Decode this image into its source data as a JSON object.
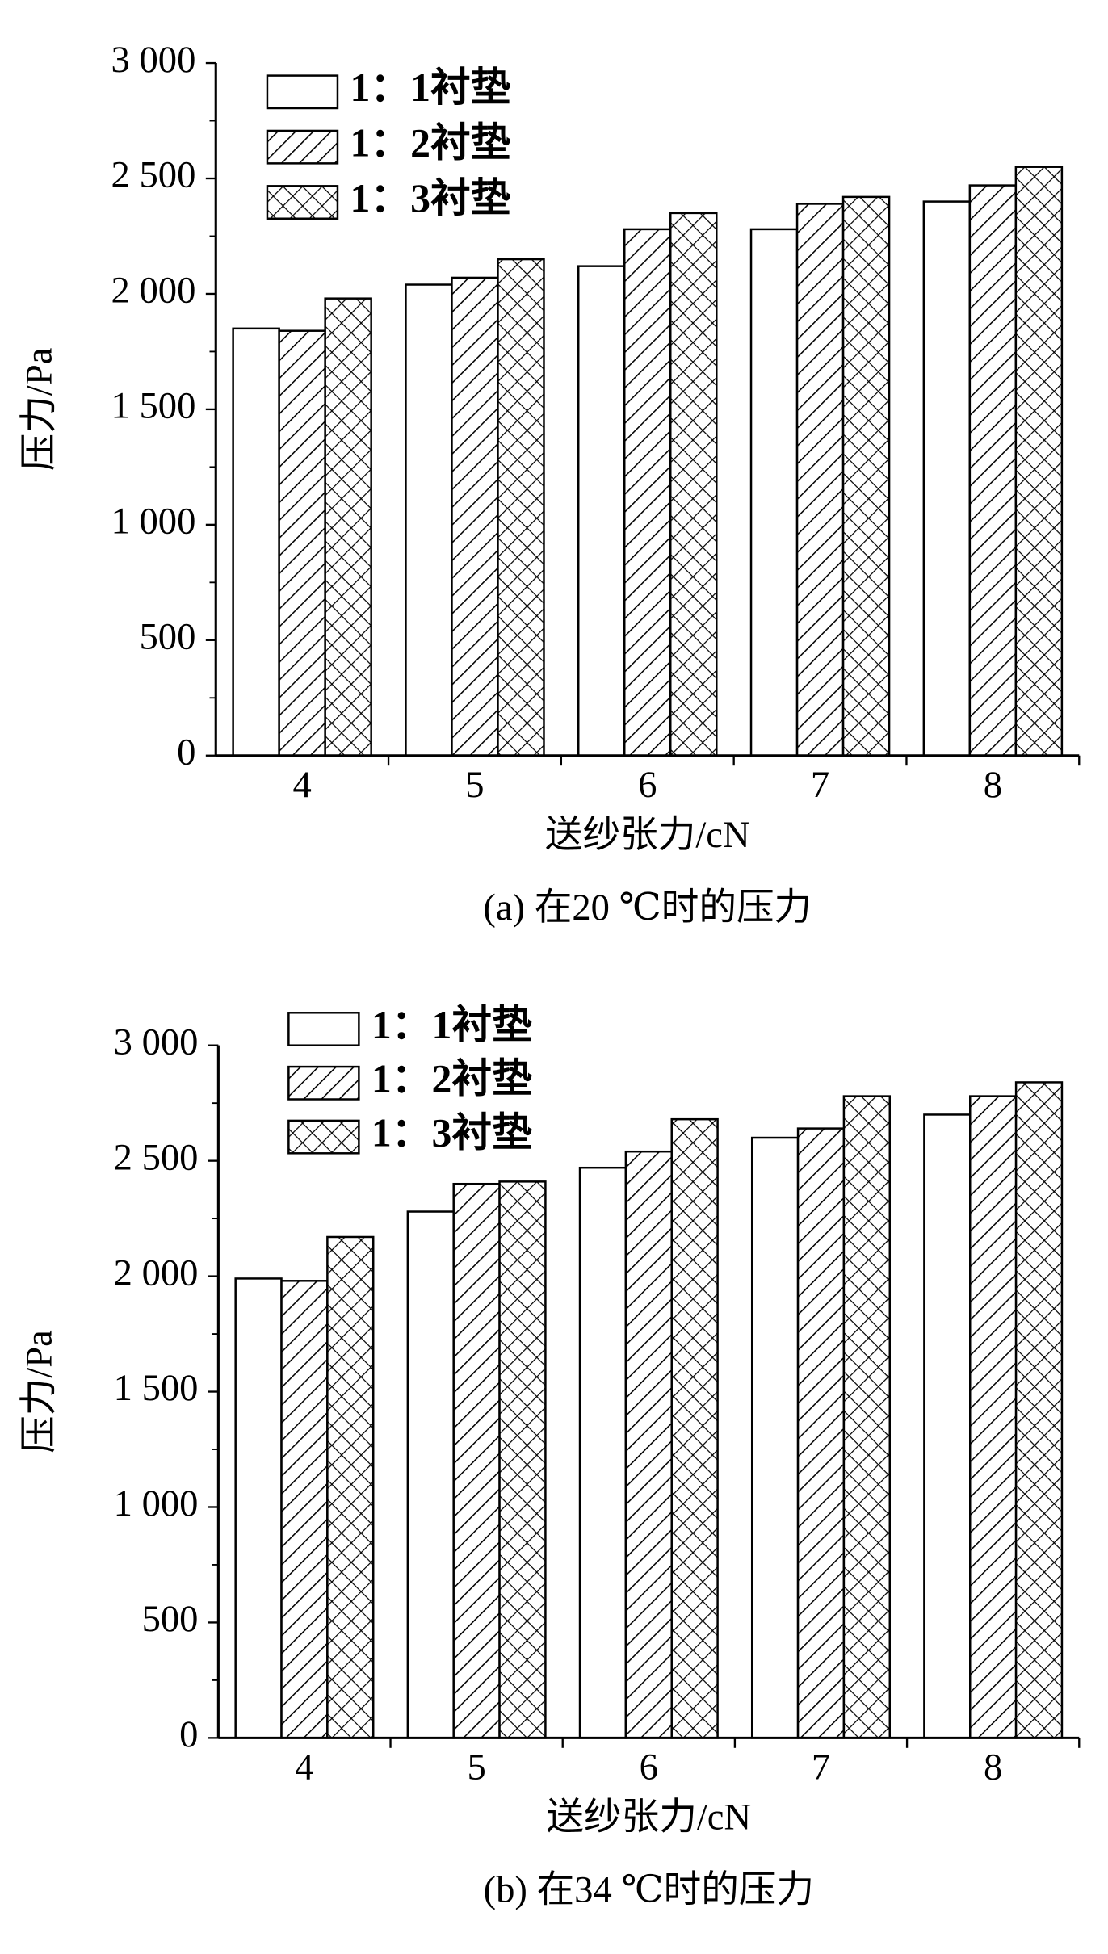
{
  "chart_data": [
    {
      "type": "bar",
      "title": "(a) 在20 ℃时的压力",
      "x_label": "送纱张力/cN",
      "y_label": "压力/Pa",
      "categories": [
        "4",
        "5",
        "6",
        "7",
        "8"
      ],
      "series": [
        {
          "name": "1：1衬垫",
          "color": "#ffffff",
          "pattern": "none",
          "values": [
            1850,
            2040,
            2120,
            2280,
            2400
          ]
        },
        {
          "name": "1：2衬垫",
          "color": "#ffffff",
          "pattern": "hatch",
          "values": [
            1840,
            2070,
            2280,
            2390,
            2470
          ]
        },
        {
          "name": "1：3衬垫",
          "color": "#ffffff",
          "pattern": "crosshatch",
          "values": [
            1980,
            2150,
            2350,
            2420,
            2550
          ]
        }
      ],
      "ylim": [
        0,
        3000
      ],
      "yticks": [
        0,
        500,
        {
          "value": 1000,
          "label": "1 000"
        },
        {
          "value": 1500,
          "label": "1 500"
        },
        {
          "value": 2000,
          "label": "2 000"
        },
        {
          "value": 2500,
          "label": "2 500"
        },
        {
          "value": 3000,
          "label": "3 000"
        }
      ],
      "grid": false,
      "legend": "upper left"
    },
    {
      "type": "bar",
      "title": "(b) 在34 ℃时的压力",
      "x_label": "送纱张力/cN",
      "y_label": "压力/Pa",
      "categories": [
        "4",
        "5",
        "6",
        "7",
        "8"
      ],
      "series": [
        {
          "name": "1：1衬垫",
          "color": "#ffffff",
          "pattern": "none",
          "values": [
            1990,
            2280,
            2470,
            2600,
            2700
          ]
        },
        {
          "name": "1：2衬垫",
          "color": "#ffffff",
          "pattern": "hatch",
          "values": [
            1980,
            2400,
            2540,
            2640,
            2780
          ]
        },
        {
          "name": "1：3衬垫",
          "color": "#ffffff",
          "pattern": "crosshatch",
          "values": [
            2170,
            2410,
            2680,
            2780,
            2840
          ]
        }
      ],
      "ylim": [
        0,
        3000
      ],
      "yticks": [
        0,
        500,
        {
          "value": 1000,
          "label": "1 000"
        },
        {
          "value": 1500,
          "label": "1 500"
        },
        {
          "value": 2000,
          "label": "2 000"
        },
        {
          "value": 2500,
          "label": "2 500"
        },
        {
          "value": 3000,
          "label": "3 000"
        }
      ],
      "grid": false,
      "legend": "upper left"
    }
  ]
}
